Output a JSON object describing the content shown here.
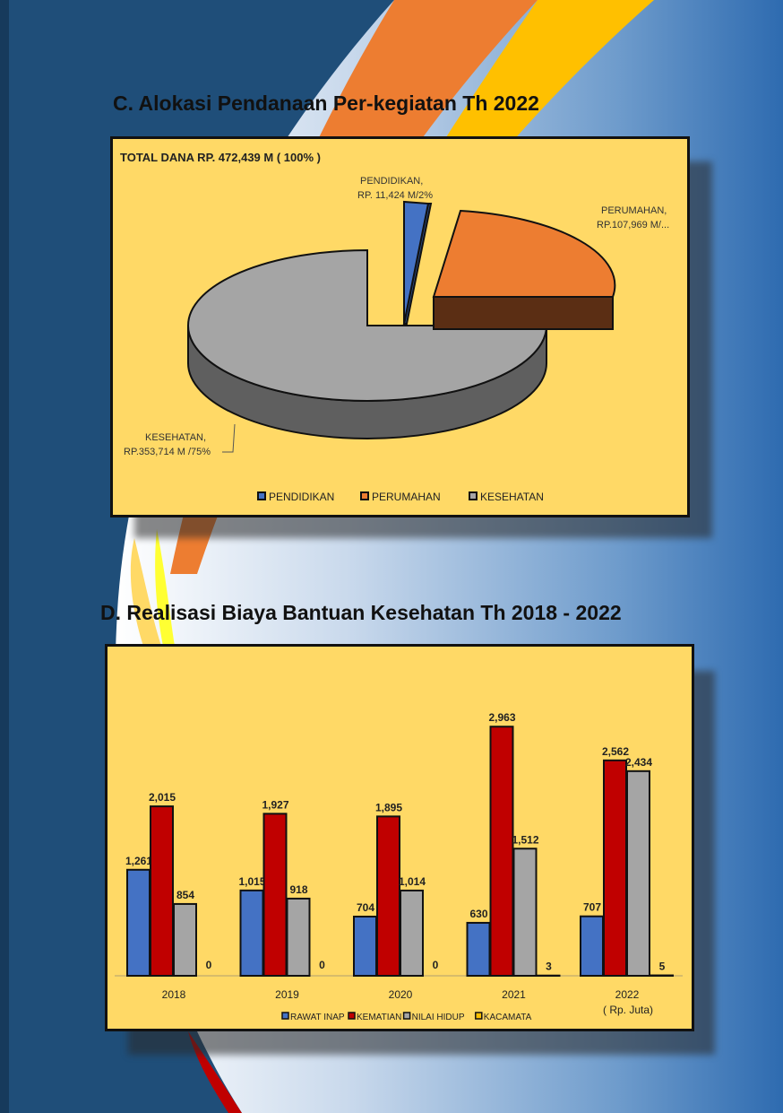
{
  "section_c": {
    "title": "C.   Alokasi Pendanaan Per-kegiatan  Th 2022"
  },
  "section_d": {
    "title": "D.   Realisasi Biaya Bantuan Kesehatan Th 2018 - 2022"
  },
  "chart_data": [
    {
      "type": "pie",
      "title": "TOTAL DANA RP. 472,439 M ( 100% )",
      "slices": [
        {
          "name": "PENDIDIKAN",
          "value": 11.424,
          "percent": 2,
          "label_line1": "PENDIDIKAN,",
          "label_line2": "RP. 11,424 M/2%",
          "color": "#4472c4"
        },
        {
          "name": "PERUMAHAN",
          "value": 107.969,
          "percent": 23,
          "label_line1": "PERUMAHAN,",
          "label_line2": "RP.107,969 M/...",
          "color": "#ed7d31"
        },
        {
          "name": "KESEHATAN",
          "value": 353.714,
          "percent": 75,
          "label_line1": "KESEHATAN,",
          "label_line2": "RP.353,714 M /75%",
          "color": "#a5a5a5"
        }
      ],
      "legend": [
        "PENDIDIKAN",
        "PERUMAHAN",
        "KESEHATAN"
      ],
      "legend_position": "bottom"
    },
    {
      "type": "bar",
      "categories": [
        "2018",
        "2019",
        "2020",
        "2021",
        "2022"
      ],
      "series": [
        {
          "name": "RAWAT INAP",
          "values": [
            1261,
            1015,
            704,
            630,
            707
          ],
          "labels": [
            "1,261",
            "1,015",
            "704",
            "630",
            "707"
          ],
          "color": "#4472c4"
        },
        {
          "name": "KEMATIAN",
          "values": [
            2015,
            1927,
            1895,
            2963,
            2562
          ],
          "labels": [
            "2,015",
            "1,927",
            "1,895",
            "2,963",
            "2,562"
          ],
          "color": "#c00000"
        },
        {
          "name": "NILAI HIDUP",
          "values": [
            854,
            918,
            1014,
            1512,
            2434
          ],
          "labels": [
            "854",
            "918",
            "1,014",
            "1,512",
            "2,434"
          ],
          "color": "#a5a5a5"
        },
        {
          "name": "KACAMATA",
          "values": [
            0,
            0,
            0,
            3,
            5
          ],
          "labels": [
            "0",
            "0",
            "0",
            "3",
            "5"
          ],
          "color": "#ffc000"
        }
      ],
      "ylim": [
        0,
        3200
      ],
      "unit_note": "( Rp. Juta)",
      "legend_position": "bottom"
    }
  ]
}
